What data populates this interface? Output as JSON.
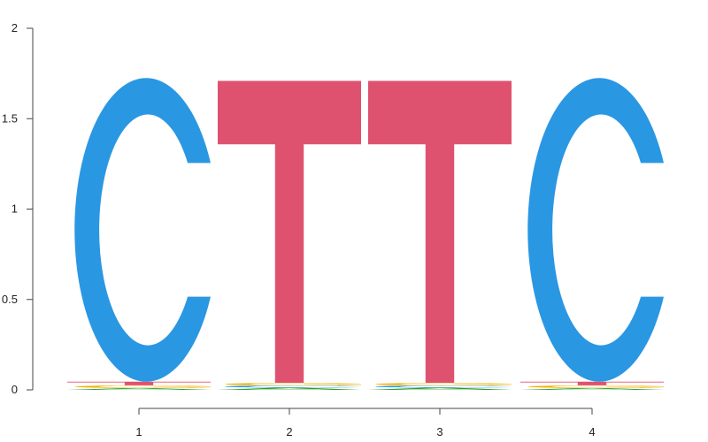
{
  "chart_data": {
    "type": "sequence-logo",
    "y_axis": {
      "ticks": [
        "0",
        "0.5",
        "1",
        "1.5",
        "2"
      ],
      "tick_values": [
        0,
        0.5,
        1,
        1.5,
        2
      ],
      "ylim": [
        0,
        2
      ]
    },
    "x_axis": {
      "ticks": [
        "1",
        "2",
        "3",
        "4"
      ]
    },
    "colors": {
      "A": "#2aa02a",
      "C": "#2a97e3",
      "G": "#f5b100",
      "T": "#de5270",
      "axis": "#444444"
    },
    "positions": [
      {
        "position": "1",
        "stack": [
          {
            "letter": "A",
            "height": 0.01
          },
          {
            "letter": "G",
            "height": 0.015
          },
          {
            "letter": "T",
            "height": 0.02
          },
          {
            "letter": "C",
            "height": 1.68
          }
        ]
      },
      {
        "position": "2",
        "stack": [
          {
            "letter": "A",
            "height": 0.012
          },
          {
            "letter": "C",
            "height": 0.012
          },
          {
            "letter": "G",
            "height": 0.015
          },
          {
            "letter": "T",
            "height": 1.67
          }
        ]
      },
      {
        "position": "3",
        "stack": [
          {
            "letter": "A",
            "height": 0.012
          },
          {
            "letter": "C",
            "height": 0.012
          },
          {
            "letter": "G",
            "height": 0.015
          },
          {
            "letter": "T",
            "height": 1.67
          }
        ]
      },
      {
        "position": "4",
        "stack": [
          {
            "letter": "A",
            "height": 0.01
          },
          {
            "letter": "G",
            "height": 0.015
          },
          {
            "letter": "T",
            "height": 0.02
          },
          {
            "letter": "C",
            "height": 1.68
          }
        ]
      }
    ]
  }
}
